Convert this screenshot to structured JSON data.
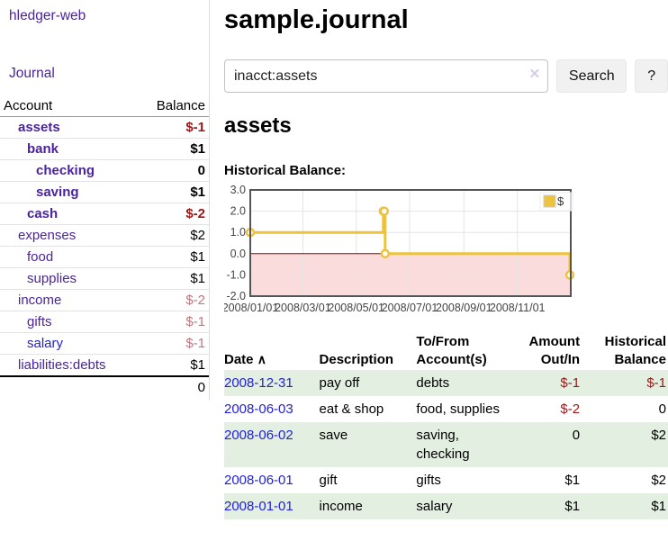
{
  "app": {
    "title": "hledger-web"
  },
  "nav": {
    "journal": "Journal"
  },
  "sidebar": {
    "columns": {
      "account": "Account",
      "balance": "Balance"
    },
    "accounts": [
      {
        "name": "assets",
        "level": 1,
        "balance": "$-1",
        "bold": true,
        "balance_color": "negative"
      },
      {
        "name": "bank",
        "level": 2,
        "balance": "$1",
        "bold": true,
        "balance_color": "normal"
      },
      {
        "name": "checking",
        "level": 3,
        "balance": "0",
        "bold": true,
        "balance_color": "normal"
      },
      {
        "name": "saving",
        "level": 3,
        "balance": "$1",
        "bold": true,
        "balance_color": "normal"
      },
      {
        "name": "cash",
        "level": 2,
        "balance": "$-2",
        "bold": true,
        "balance_color": "negative"
      },
      {
        "name": "expenses",
        "level": 1,
        "balance": "$2",
        "bold": false,
        "balance_color": "normal"
      },
      {
        "name": "food",
        "level": 2,
        "balance": "$1",
        "bold": false,
        "balance_color": "normal"
      },
      {
        "name": "supplies",
        "level": 2,
        "balance": "$1",
        "bold": false,
        "balance_color": "normal"
      },
      {
        "name": "income",
        "level": 1,
        "balance": "$-2",
        "bold": false,
        "balance_color": "negative-soft"
      },
      {
        "name": "gifts",
        "level": 2,
        "balance": "$-1",
        "bold": false,
        "balance_color": "negative-soft"
      },
      {
        "name": "salary",
        "level": 2,
        "balance": "$-1",
        "bold": false,
        "balance_color": "negative-soft",
        "link_style": "blue"
      },
      {
        "name": "liabilities:debts",
        "level": 1,
        "balance": "$1",
        "bold": false,
        "balance_color": "normal"
      }
    ],
    "total": "0"
  },
  "header": {
    "title": "sample.journal"
  },
  "search": {
    "value": "inacct:assets",
    "clear_icon": "✕",
    "button_label": "Search",
    "help_label": "?"
  },
  "register": {
    "account_heading": "assets",
    "chart_title": "Historical Balance:",
    "table": {
      "headers": {
        "date": "Date",
        "sort_icon": "∧",
        "description": "Description",
        "accounts": "To/From Account(s)",
        "amount": "Amount Out/In",
        "balance": "Historical Balance"
      },
      "rows": [
        {
          "date": "2008-12-31",
          "description": "pay off",
          "accounts": "debts",
          "amount": "$-1",
          "amount_color": "negative",
          "balance": "$-1",
          "balance_color": "negative"
        },
        {
          "date": "2008-06-03",
          "description": "eat & shop",
          "accounts": "food, supplies",
          "amount": "$-2",
          "amount_color": "negative",
          "balance": "0",
          "balance_color": "normal"
        },
        {
          "date": "2008-06-02",
          "description": "save",
          "accounts": "saving, checking",
          "amount": "0",
          "amount_color": "normal",
          "balance": "$2",
          "balance_color": "normal"
        },
        {
          "date": "2008-06-01",
          "description": "gift",
          "accounts": "gifts",
          "amount": "$1",
          "amount_color": "normal",
          "balance": "$2",
          "balance_color": "normal"
        },
        {
          "date": "2008-01-01",
          "description": "income",
          "accounts": "salary",
          "amount": "$1",
          "amount_color": "normal",
          "balance": "$1",
          "balance_color": "normal"
        }
      ]
    }
  },
  "chart_data": {
    "type": "line",
    "title": "Historical Balance",
    "step": true,
    "series": [
      {
        "name": "$",
        "points": [
          {
            "date": "2008-01-01",
            "day": 0,
            "value": 1
          },
          {
            "date": "2008-06-01",
            "day": 152,
            "value": 2
          },
          {
            "date": "2008-06-02",
            "day": 153,
            "value": 2
          },
          {
            "date": "2008-06-03",
            "day": 154,
            "value": 0
          },
          {
            "date": "2008-12-31",
            "day": 365,
            "value": -1
          }
        ]
      }
    ],
    "ylim": [
      -2,
      3
    ],
    "yticks": [
      "3.0",
      "2.0",
      "1.0",
      "0.0",
      "-1.0",
      "-2.0"
    ],
    "xticks": [
      {
        "label": "2008/01/01",
        "day": 0
      },
      {
        "label": "2008/03/01",
        "day": 60
      },
      {
        "label": "2008/05/01",
        "day": 121
      },
      {
        "label": "2008/07/01",
        "day": 182
      },
      {
        "label": "2008/09/01",
        "day": 244
      },
      {
        "label": "2008/11/01",
        "day": 305
      }
    ],
    "x_domain_days": [
      0,
      366
    ],
    "legend": {
      "label": "$",
      "position": "top-right"
    },
    "grid": true,
    "colors": {
      "series": "#EDC240",
      "negative_region": "#fbdcdc",
      "zero_line": "#8b0000",
      "grid": "#e4e4e4",
      "border": "#545454",
      "tick_text": "#444444"
    }
  }
}
